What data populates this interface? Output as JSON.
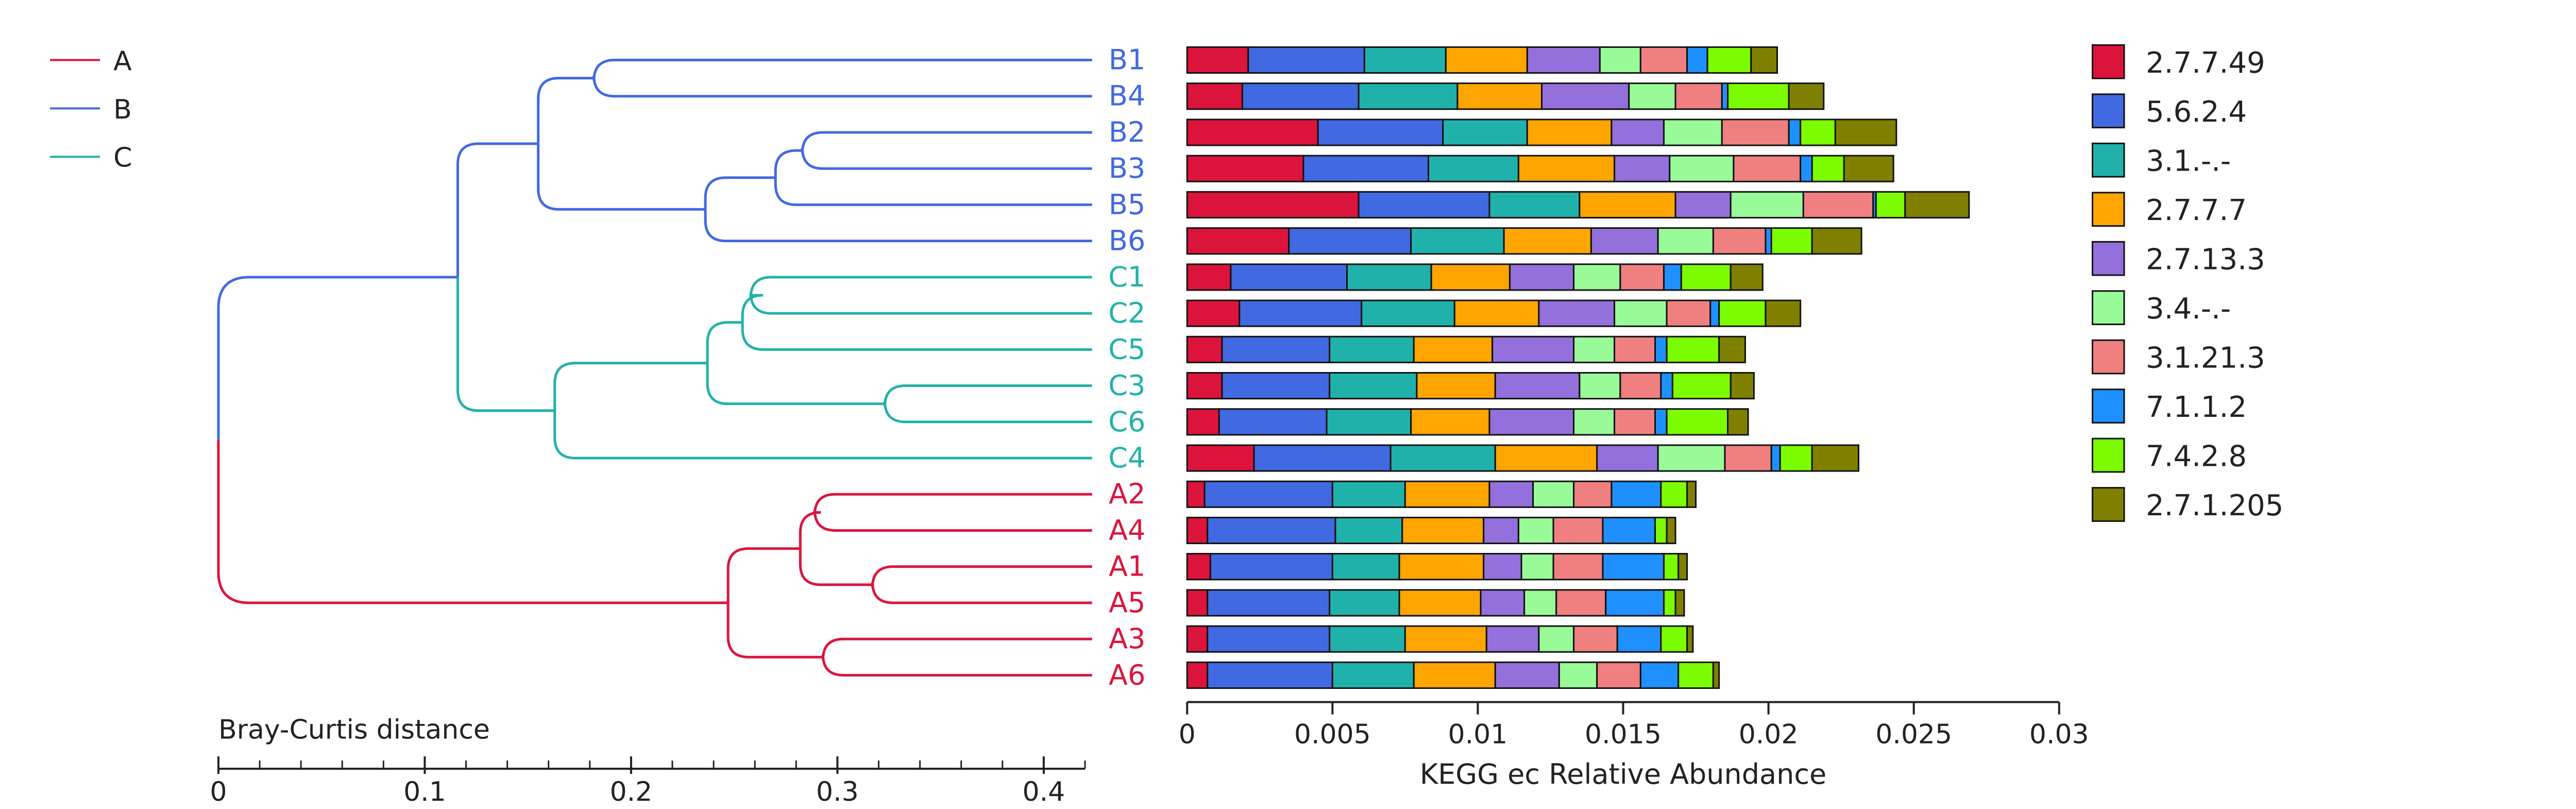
{
  "group_legend": [
    {
      "label": "A",
      "color": "#dc143c"
    },
    {
      "label": "B",
      "color": "#4169e1"
    },
    {
      "label": "C",
      "color": "#20b2aa"
    }
  ],
  "tree_axis": {
    "label": "Bray-Curtis distance",
    "ticks": [
      "0",
      "0.1",
      "0.2",
      "0.3",
      "0.4"
    ],
    "tick_values": [
      0,
      0.1,
      0.2,
      0.3,
      0.4
    ],
    "range": [
      0,
      0.42
    ],
    "minor_step": 0.02
  },
  "chart_data": {
    "type": "bar",
    "orientation": "horizontal",
    "stacked": true,
    "categories": [
      "B1",
      "B4",
      "B2",
      "B3",
      "B5",
      "B6",
      "C1",
      "C2",
      "C5",
      "C3",
      "C6",
      "C4",
      "A2",
      "A4",
      "A1",
      "A5",
      "A3",
      "A6"
    ],
    "category_groups": [
      "B",
      "B",
      "B",
      "B",
      "B",
      "B",
      "C",
      "C",
      "C",
      "C",
      "C",
      "C",
      "A",
      "A",
      "A",
      "A",
      "A",
      "A"
    ],
    "xlabel": "KEGG ec Relative Abundance",
    "xlim": [
      0,
      0.03
    ],
    "xticks": [
      "0",
      "0.005",
      "0.01",
      "0.015",
      "0.02",
      "0.025",
      "0.03"
    ],
    "legend_position": "right",
    "series": [
      {
        "name": "2.7.7.49",
        "color": "#dc143c",
        "values": [
          0.0021,
          0.0019,
          0.0045,
          0.004,
          0.0059,
          0.0035,
          0.0015,
          0.0018,
          0.0012,
          0.0012,
          0.0011,
          0.0023,
          0.0006,
          0.0007,
          0.0008,
          0.0007,
          0.0007,
          0.0007
        ]
      },
      {
        "name": "5.6.2.4",
        "color": "#4169e1",
        "values": [
          0.004,
          0.004,
          0.0043,
          0.0043,
          0.0045,
          0.0042,
          0.004,
          0.0042,
          0.0037,
          0.0037,
          0.0037,
          0.0047,
          0.0044,
          0.0044,
          0.0042,
          0.0042,
          0.0042,
          0.0043
        ]
      },
      {
        "name": "3.1.-.-",
        "color": "#20b2aa",
        "values": [
          0.0028,
          0.0034,
          0.0029,
          0.0031,
          0.0031,
          0.0032,
          0.0029,
          0.0032,
          0.0029,
          0.003,
          0.0029,
          0.0036,
          0.0025,
          0.0023,
          0.0023,
          0.0024,
          0.0026,
          0.0028
        ]
      },
      {
        "name": "2.7.7.7",
        "color": "#ffa500",
        "values": [
          0.0028,
          0.0029,
          0.0029,
          0.0033,
          0.0033,
          0.003,
          0.0027,
          0.0029,
          0.0027,
          0.0027,
          0.0027,
          0.0035,
          0.0029,
          0.0028,
          0.0029,
          0.0028,
          0.0028,
          0.0028
        ]
      },
      {
        "name": "2.7.13.3",
        "color": "#9370db",
        "values": [
          0.0025,
          0.003,
          0.0018,
          0.0019,
          0.0019,
          0.0023,
          0.0022,
          0.0026,
          0.0028,
          0.0029,
          0.0029,
          0.0021,
          0.0015,
          0.0012,
          0.0013,
          0.0015,
          0.0018,
          0.0022
        ]
      },
      {
        "name": "3.4.-.-",
        "color": "#98fb98",
        "values": [
          0.0014,
          0.0016,
          0.002,
          0.0022,
          0.0025,
          0.0019,
          0.0016,
          0.0018,
          0.0014,
          0.0014,
          0.0014,
          0.0023,
          0.0014,
          0.0012,
          0.0011,
          0.0011,
          0.0012,
          0.0013
        ]
      },
      {
        "name": "3.1.21.3",
        "color": "#f08080",
        "values": [
          0.0016,
          0.0016,
          0.0023,
          0.0023,
          0.0024,
          0.0018,
          0.0015,
          0.0015,
          0.0014,
          0.0014,
          0.0014,
          0.0016,
          0.0013,
          0.0017,
          0.0017,
          0.0017,
          0.0015,
          0.0015
        ]
      },
      {
        "name": "7.1.1.2",
        "color": "#1e90ff",
        "values": [
          0.0007,
          0.0002,
          0.0004,
          0.0004,
          0.0001,
          0.0002,
          0.0006,
          0.0003,
          0.0004,
          0.0004,
          0.0004,
          0.0003,
          0.0017,
          0.0018,
          0.0021,
          0.002,
          0.0015,
          0.0013
        ]
      },
      {
        "name": "7.4.2.8",
        "color": "#7cfc00",
        "values": [
          0.0015,
          0.0021,
          0.0012,
          0.0011,
          0.001,
          0.0014,
          0.0017,
          0.0016,
          0.0018,
          0.002,
          0.0021,
          0.0011,
          0.0009,
          0.0004,
          0.0005,
          0.0004,
          0.0009,
          0.0012
        ]
      },
      {
        "name": "2.7.1.205",
        "color": "#808000",
        "values": [
          0.0009,
          0.0012,
          0.0021,
          0.0017,
          0.0022,
          0.0017,
          0.0011,
          0.0012,
          0.0009,
          0.0008,
          0.0007,
          0.0016,
          0.0003,
          0.0003,
          0.0003,
          0.0003,
          0.0002,
          0.0002
        ]
      }
    ]
  }
}
